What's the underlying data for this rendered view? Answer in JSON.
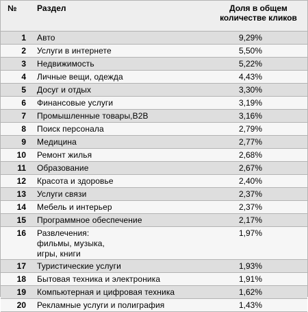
{
  "header": {
    "num": "№",
    "section": "Раздел",
    "share": "Доля в общем количестве кликов"
  },
  "rows": [
    {
      "num": "1",
      "section": "Авто",
      "share": "9,29%"
    },
    {
      "num": "2",
      "section": "Услуги в интернете",
      "share": "5,50%"
    },
    {
      "num": "3",
      "section": "Недвижимость",
      "share": "5,22%"
    },
    {
      "num": "4",
      "section": "Личные вещи, одежда",
      "share": "4,43%"
    },
    {
      "num": "5",
      "section": "Досуг и отдых",
      "share": "3,30%"
    },
    {
      "num": "6",
      "section": "Финансовые услуги",
      "share": "3,19%"
    },
    {
      "num": "7",
      "section": "Промышленные товары,B2B",
      "share": "3,16%"
    },
    {
      "num": "8",
      "section": "Поиск персонала",
      "share": "2,79%"
    },
    {
      "num": "9",
      "section": "Медицина",
      "share": "2,77%"
    },
    {
      "num": "10",
      "section": "Ремонт жилья",
      "share": "2,68%"
    },
    {
      "num": "11",
      "section": "Образование",
      "share": "2,67%"
    },
    {
      "num": "12",
      "section": "Красота и здоровье",
      "share": "2,40%"
    },
    {
      "num": "13",
      "section": "Услуги связи",
      "share": "2,37%"
    },
    {
      "num": "14",
      "section": "Мебель и интерьер",
      "share": "2,37%"
    },
    {
      "num": "15",
      "section": "Программное обеспечение",
      "share": "2,17%"
    },
    {
      "num": "16",
      "section": "Развлечения: фильмы, музыка, игры, книги",
      "share": "1,97%"
    },
    {
      "num": "17",
      "section": "Туристические услуги",
      "share": "1,93%"
    },
    {
      "num": "18",
      "section": "Бытовая техника и электроника",
      "share": "1,91%"
    },
    {
      "num": "19",
      "section": "Компьютерная и цифровая техника",
      "share": "1,62%"
    },
    {
      "num": "20",
      "section": "Рекламные услуги и полиграфия",
      "share": "1,43%"
    }
  ]
}
